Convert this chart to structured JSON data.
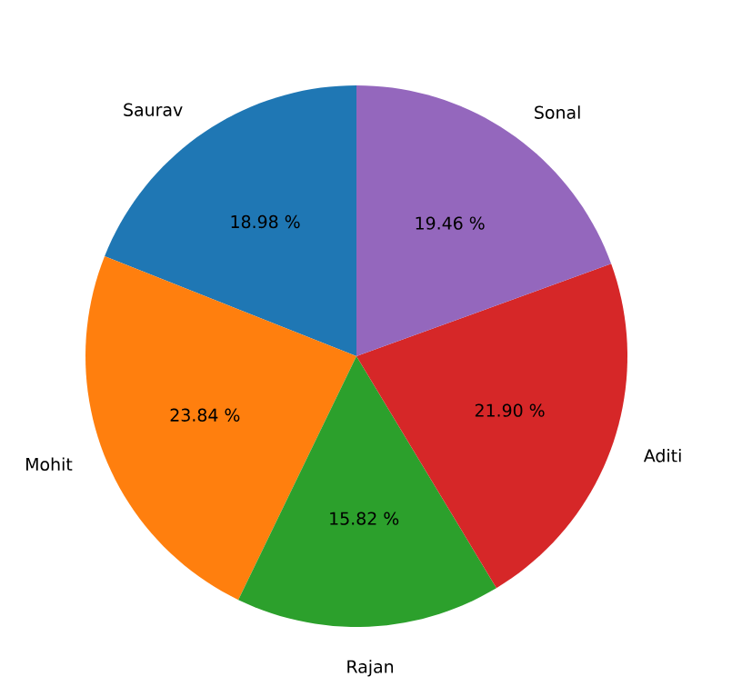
{
  "chart_data": {
    "type": "pie",
    "categories": [
      "Saurav",
      "Mohit",
      "Rajan",
      "Aditi",
      "Sonal"
    ],
    "values": [
      18.98,
      23.84,
      15.82,
      21.9,
      19.46
    ],
    "value_labels": [
      "18.98 %",
      "23.84 %",
      "15.82 %",
      "21.90 %",
      "19.46 %"
    ],
    "colors": [
      "#1f77b4",
      "#ff7f0e",
      "#2ca02c",
      "#d62728",
      "#9467bd"
    ]
  }
}
